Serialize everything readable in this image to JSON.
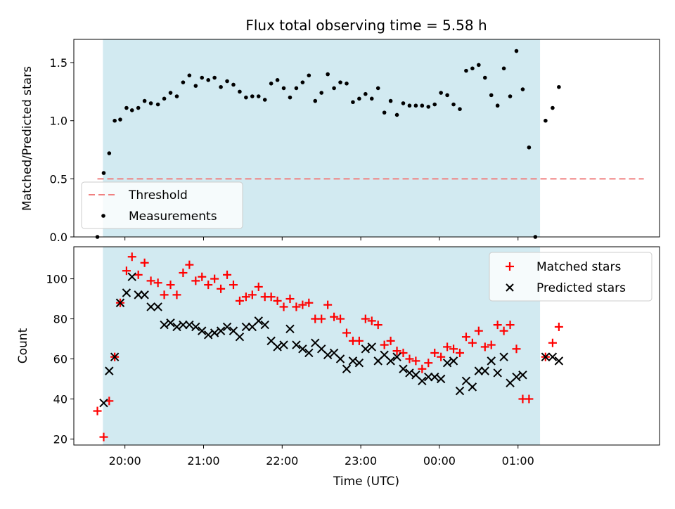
{
  "chart_data": [
    {
      "type": "scatter",
      "title": "Flux total observing time = 5.58 h",
      "xlabel": "",
      "ylabel": "Matched/Predicted stars",
      "xlim_hours": [
        19.35,
        26.8
      ],
      "ylim": [
        0,
        1.7
      ],
      "yticks": [
        "0.0",
        "0.5",
        "1.0",
        "1.5"
      ],
      "shaded_range_hours": [
        19.72,
        25.28
      ],
      "shade_color": "#add8e6",
      "legend_position": "lower-left",
      "threshold": {
        "name": "Threshold",
        "value": 0.5,
        "x_range_hours": [
          19.65,
          26.6
        ],
        "color": "#f08080"
      },
      "series": [
        {
          "name": "Measurements",
          "color": "#000000",
          "points": [
            [
              19.65,
              0.0
            ],
            [
              19.73,
              0.55
            ],
            [
              19.8,
              0.72
            ],
            [
              19.87,
              1.0
            ],
            [
              19.94,
              1.01
            ],
            [
              20.02,
              1.11
            ],
            [
              20.09,
              1.09
            ],
            [
              20.17,
              1.11
            ],
            [
              20.25,
              1.17
            ],
            [
              20.33,
              1.15
            ],
            [
              20.42,
              1.14
            ],
            [
              20.5,
              1.19
            ],
            [
              20.58,
              1.24
            ],
            [
              20.66,
              1.21
            ],
            [
              20.74,
              1.33
            ],
            [
              20.82,
              1.39
            ],
            [
              20.9,
              1.3
            ],
            [
              20.98,
              1.37
            ],
            [
              21.06,
              1.35
            ],
            [
              21.14,
              1.37
            ],
            [
              21.22,
              1.29
            ],
            [
              21.3,
              1.34
            ],
            [
              21.38,
              1.31
            ],
            [
              21.46,
              1.25
            ],
            [
              21.54,
              1.2
            ],
            [
              21.62,
              1.21
            ],
            [
              21.7,
              1.21
            ],
            [
              21.78,
              1.18
            ],
            [
              21.86,
              1.32
            ],
            [
              21.94,
              1.35
            ],
            [
              22.02,
              1.28
            ],
            [
              22.1,
              1.2
            ],
            [
              22.18,
              1.28
            ],
            [
              22.26,
              1.33
            ],
            [
              22.34,
              1.39
            ],
            [
              22.42,
              1.17
            ],
            [
              22.5,
              1.24
            ],
            [
              22.58,
              1.4
            ],
            [
              22.66,
              1.28
            ],
            [
              22.74,
              1.33
            ],
            [
              22.82,
              1.32
            ],
            [
              22.9,
              1.16
            ],
            [
              22.98,
              1.19
            ],
            [
              23.06,
              1.23
            ],
            [
              23.14,
              1.19
            ],
            [
              23.22,
              1.28
            ],
            [
              23.3,
              1.07
            ],
            [
              23.38,
              1.17
            ],
            [
              23.46,
              1.05
            ],
            [
              23.54,
              1.15
            ],
            [
              23.62,
              1.13
            ],
            [
              23.7,
              1.13
            ],
            [
              23.78,
              1.13
            ],
            [
              23.86,
              1.12
            ],
            [
              23.94,
              1.14
            ],
            [
              24.02,
              1.24
            ],
            [
              24.1,
              1.22
            ],
            [
              24.18,
              1.14
            ],
            [
              24.26,
              1.1
            ],
            [
              24.34,
              1.43
            ],
            [
              24.42,
              1.45
            ],
            [
              24.5,
              1.48
            ],
            [
              24.58,
              1.37
            ],
            [
              24.66,
              1.22
            ],
            [
              24.74,
              1.13
            ],
            [
              24.82,
              1.45
            ],
            [
              24.9,
              1.21
            ],
            [
              24.98,
              1.6
            ],
            [
              25.06,
              1.27
            ],
            [
              25.14,
              0.77
            ],
            [
              25.22,
              0.0
            ],
            [
              25.35,
              1.0
            ],
            [
              25.44,
              1.11
            ],
            [
              25.52,
              1.29
            ]
          ]
        }
      ]
    },
    {
      "type": "scatter",
      "title": "",
      "xlabel": "Time (UTC)",
      "ylabel": "Count",
      "xlim_hours": [
        19.35,
        26.8
      ],
      "ylim": [
        17,
        116
      ],
      "yticks": [
        "20",
        "40",
        "60",
        "80",
        "100"
      ],
      "xticks": [
        "20:00",
        "21:00",
        "22:00",
        "23:00",
        "00:00",
        "01:00"
      ],
      "shaded_range_hours": [
        19.72,
        25.28
      ],
      "legend_position": "upper-right",
      "series": [
        {
          "name": "Matched stars",
          "marker": "plus",
          "color": "#ff0000",
          "points": [
            [
              19.65,
              34
            ],
            [
              19.73,
              21
            ],
            [
              19.8,
              39
            ],
            [
              19.87,
              61
            ],
            [
              19.94,
              88
            ],
            [
              20.02,
              104
            ],
            [
              20.09,
              111
            ],
            [
              20.17,
              102
            ],
            [
              20.25,
              108
            ],
            [
              20.33,
              99
            ],
            [
              20.42,
              98
            ],
            [
              20.5,
              92
            ],
            [
              20.58,
              97
            ],
            [
              20.66,
              92
            ],
            [
              20.74,
              103
            ],
            [
              20.82,
              107
            ],
            [
              20.9,
              99
            ],
            [
              20.98,
              101
            ],
            [
              21.06,
              97
            ],
            [
              21.14,
              100
            ],
            [
              21.22,
              95
            ],
            [
              21.3,
              102
            ],
            [
              21.38,
              97
            ],
            [
              21.46,
              89
            ],
            [
              21.54,
              91
            ],
            [
              21.62,
              92
            ],
            [
              21.7,
              96
            ],
            [
              21.78,
              91
            ],
            [
              21.86,
              91
            ],
            [
              21.94,
              89
            ],
            [
              22.02,
              86
            ],
            [
              22.1,
              90
            ],
            [
              22.18,
              86
            ],
            [
              22.26,
              87
            ],
            [
              22.34,
              88
            ],
            [
              22.42,
              80
            ],
            [
              22.5,
              80
            ],
            [
              22.58,
              87
            ],
            [
              22.66,
              81
            ],
            [
              22.74,
              80
            ],
            [
              22.82,
              73
            ],
            [
              22.9,
              69
            ],
            [
              22.98,
              69
            ],
            [
              23.06,
              80
            ],
            [
              23.14,
              79
            ],
            [
              23.22,
              77
            ],
            [
              23.3,
              67
            ],
            [
              23.38,
              69
            ],
            [
              23.46,
              64
            ],
            [
              23.54,
              63
            ],
            [
              23.62,
              60
            ],
            [
              23.7,
              59
            ],
            [
              23.78,
              55
            ],
            [
              23.86,
              58
            ],
            [
              23.94,
              63
            ],
            [
              24.02,
              61
            ],
            [
              24.1,
              66
            ],
            [
              24.18,
              65
            ],
            [
              24.26,
              63
            ],
            [
              24.34,
              71
            ],
            [
              24.42,
              68
            ],
            [
              24.5,
              74
            ],
            [
              24.58,
              66
            ],
            [
              24.66,
              67
            ],
            [
              24.74,
              77
            ],
            [
              24.82,
              74
            ],
            [
              24.9,
              77
            ],
            [
              24.98,
              65
            ],
            [
              25.06,
              40
            ],
            [
              25.14,
              40
            ],
            [
              25.35,
              61
            ],
            [
              25.44,
              68
            ],
            [
              25.52,
              76
            ]
          ]
        },
        {
          "name": "Predicted stars",
          "marker": "x",
          "color": "#000000",
          "points": [
            [
              19.73,
              38
            ],
            [
              19.8,
              54
            ],
            [
              19.87,
              61
            ],
            [
              19.94,
              88
            ],
            [
              20.02,
              93
            ],
            [
              20.09,
              101
            ],
            [
              20.17,
              92
            ],
            [
              20.25,
              92
            ],
            [
              20.33,
              86
            ],
            [
              20.42,
              86
            ],
            [
              20.5,
              77
            ],
            [
              20.58,
              78
            ],
            [
              20.66,
              76
            ],
            [
              20.74,
              77
            ],
            [
              20.82,
              77
            ],
            [
              20.9,
              76
            ],
            [
              20.98,
              74
            ],
            [
              21.06,
              72
            ],
            [
              21.14,
              73
            ],
            [
              21.22,
              74
            ],
            [
              21.3,
              76
            ],
            [
              21.38,
              74
            ],
            [
              21.46,
              71
            ],
            [
              21.54,
              76
            ],
            [
              21.62,
              76
            ],
            [
              21.7,
              79
            ],
            [
              21.78,
              77
            ],
            [
              21.86,
              69
            ],
            [
              21.94,
              66
            ],
            [
              22.02,
              67
            ],
            [
              22.1,
              75
            ],
            [
              22.18,
              67
            ],
            [
              22.26,
              65
            ],
            [
              22.34,
              63
            ],
            [
              22.42,
              68
            ],
            [
              22.5,
              65
            ],
            [
              22.58,
              62
            ],
            [
              22.66,
              63
            ],
            [
              22.74,
              60
            ],
            [
              22.82,
              55
            ],
            [
              22.9,
              59
            ],
            [
              22.98,
              58
            ],
            [
              23.06,
              65
            ],
            [
              23.14,
              66
            ],
            [
              23.22,
              59
            ],
            [
              23.3,
              62
            ],
            [
              23.38,
              59
            ],
            [
              23.46,
              61
            ],
            [
              23.54,
              55
            ],
            [
              23.62,
              53
            ],
            [
              23.7,
              52
            ],
            [
              23.78,
              49
            ],
            [
              23.86,
              51
            ],
            [
              23.94,
              51
            ],
            [
              24.02,
              50
            ],
            [
              24.1,
              58
            ],
            [
              24.18,
              59
            ],
            [
              24.26,
              44
            ],
            [
              24.34,
              49
            ],
            [
              24.42,
              46
            ],
            [
              24.5,
              54
            ],
            [
              24.58,
              54
            ],
            [
              24.66,
              59
            ],
            [
              24.74,
              53
            ],
            [
              24.82,
              61
            ],
            [
              24.9,
              48
            ],
            [
              24.98,
              51
            ],
            [
              25.06,
              52
            ],
            [
              25.35,
              61
            ],
            [
              25.44,
              61
            ],
            [
              25.52,
              59
            ]
          ]
        }
      ]
    }
  ]
}
